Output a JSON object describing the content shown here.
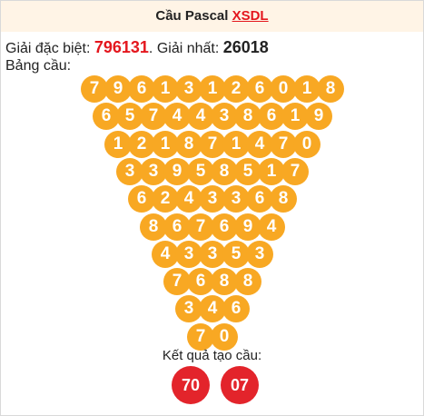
{
  "header": {
    "title": "Cầu Pascal",
    "link": "XSDL"
  },
  "info": {
    "special_label": "Giải đặc biệt:",
    "special_value": "796131",
    "first_label": ". Giải nhất:",
    "first_value": "26018",
    "board_label": "Bảng cầu:"
  },
  "triangle": [
    [
      "7",
      "9",
      "6",
      "1",
      "3",
      "1",
      "2",
      "6",
      "0",
      "1",
      "8"
    ],
    [
      "6",
      "5",
      "7",
      "4",
      "4",
      "3",
      "8",
      "6",
      "1",
      "9"
    ],
    [
      "1",
      "2",
      "1",
      "8",
      "7",
      "1",
      "4",
      "7",
      "0"
    ],
    [
      "3",
      "3",
      "9",
      "5",
      "8",
      "5",
      "1",
      "7"
    ],
    [
      "6",
      "2",
      "4",
      "3",
      "3",
      "6",
      "8"
    ],
    [
      "8",
      "6",
      "7",
      "6",
      "9",
      "4"
    ],
    [
      "4",
      "3",
      "3",
      "5",
      "3"
    ],
    [
      "7",
      "6",
      "8",
      "8"
    ],
    [
      "3",
      "4",
      "6"
    ],
    [
      "7",
      "0"
    ]
  ],
  "result": {
    "label": "Kết quả tạo cầu:",
    "values": [
      "70",
      "07"
    ],
    "ball_color": "#e3242b"
  },
  "colors": {
    "accent": "#e4171e",
    "ball": "#f8a823",
    "header_bg": "#fff4e6"
  }
}
